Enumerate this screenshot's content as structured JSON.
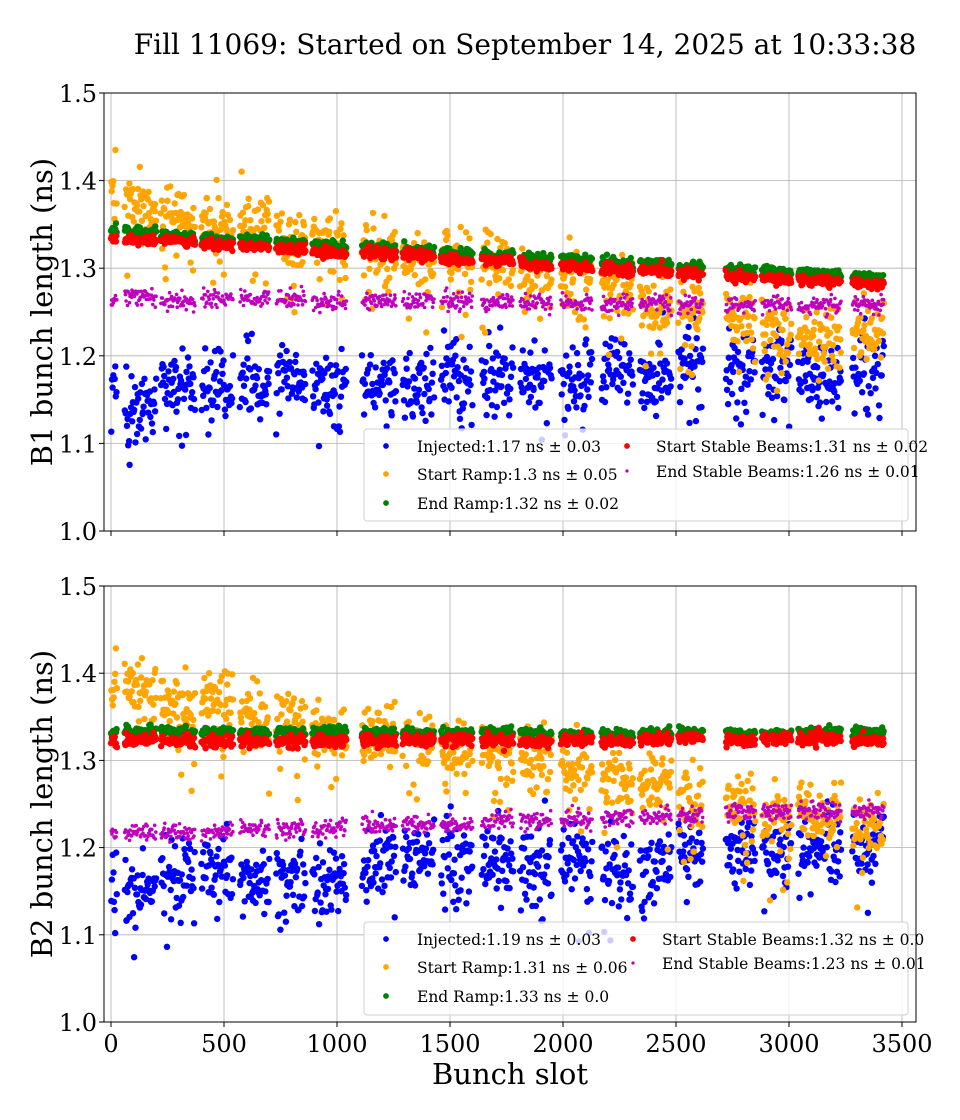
{
  "chart_data": [
    {
      "type": "scatter",
      "panel": "B1",
      "title": "Fill 11069: Started on September 14, 2025 at 10:33:38",
      "xlabel": "Bunch slot",
      "ylabel": "B1 bunch length (ns)",
      "xlim": [
        -31,
        3562
      ],
      "ylim": [
        1.0,
        1.5
      ],
      "xticks": [
        0,
        500,
        1000,
        1500,
        2000,
        2500,
        3000,
        3500
      ],
      "xtick_labels": [
        "0",
        "500",
        "1000",
        "1500",
        "2000",
        "2500",
        "3000",
        "3500"
      ],
      "yticks": [
        1.0,
        1.1,
        1.2,
        1.3,
        1.4,
        1.5
      ],
      "ytick_labels": [
        "1.0",
        "1.1",
        "1.2",
        "1.3",
        "1.4",
        "1.5"
      ],
      "grid": true,
      "legend_placement": "lower-right",
      "trains": [
        [
          0,
          25
        ],
        [
          60,
          200
        ],
        [
          220,
          370
        ],
        [
          400,
          540
        ],
        [
          570,
          700
        ],
        [
          730,
          860
        ],
        [
          890,
          1040
        ],
        [
          1110,
          1260
        ],
        [
          1290,
          1430
        ],
        [
          1460,
          1600
        ],
        [
          1640,
          1780
        ],
        [
          1810,
          1950
        ],
        [
          1990,
          2130
        ],
        [
          2170,
          2310
        ],
        [
          2340,
          2480
        ],
        [
          2510,
          2620
        ],
        [
          2720,
          2850
        ],
        [
          2880,
          3010
        ],
        [
          3040,
          3230
        ],
        [
          3280,
          3420
        ]
      ],
      "series": [
        {
          "name": "Injected",
          "label": "Injected:1.17 ns ± 0.03",
          "color": "#0000ff",
          "size": 3.2,
          "start": 1.155,
          "end": 1.185,
          "spread": 0.03
        },
        {
          "name": "Start Ramp",
          "label": "Start Ramp:1.3 ns ± 0.05",
          "color": "#ffa500",
          "size": 3.2,
          "start": 1.375,
          "end": 1.22,
          "spread": 0.025
        },
        {
          "name": "End Ramp",
          "label": "End Ramp:1.32 ns ± 0.02",
          "color": "#008000",
          "size": 3.2,
          "start": 1.342,
          "end": 1.288,
          "spread": 0.004
        },
        {
          "name": "Start Stable Beams",
          "label": "Start Stable Beams:1.31 ns ± 0.02",
          "color": "#ff0000",
          "size": 3.2,
          "start": 1.335,
          "end": 1.28,
          "spread": 0.004
        },
        {
          "name": "End Stable Beams",
          "label": "End Stable Beams:1.26 ns ± 0.01",
          "color": "#bf00bf",
          "size": 1.8,
          "start": 1.265,
          "end": 1.258,
          "spread": 0.007
        }
      ]
    },
    {
      "type": "scatter",
      "panel": "B2",
      "xlabel": "Bunch slot",
      "ylabel": "B2 bunch length (ns)",
      "xlim": [
        -31,
        3562
      ],
      "ylim": [
        1.0,
        1.5
      ],
      "xticks": [
        0,
        500,
        1000,
        1500,
        2000,
        2500,
        3000,
        3500
      ],
      "xtick_labels": [
        "0",
        "500",
        "1000",
        "1500",
        "2000",
        "2500",
        "3000",
        "3500"
      ],
      "yticks": [
        1.0,
        1.1,
        1.2,
        1.3,
        1.4,
        1.5
      ],
      "ytick_labels": [
        "1.0",
        "1.1",
        "1.2",
        "1.3",
        "1.4",
        "1.5"
      ],
      "grid": true,
      "legend_placement": "lower-right",
      "trains": [
        [
          0,
          25
        ],
        [
          60,
          200
        ],
        [
          220,
          370
        ],
        [
          400,
          540
        ],
        [
          570,
          700
        ],
        [
          730,
          860
        ],
        [
          890,
          1040
        ],
        [
          1110,
          1260
        ],
        [
          1290,
          1430
        ],
        [
          1460,
          1600
        ],
        [
          1640,
          1780
        ],
        [
          1810,
          1950
        ],
        [
          1990,
          2130
        ],
        [
          2170,
          2310
        ],
        [
          2340,
          2480
        ],
        [
          2510,
          2620
        ],
        [
          2720,
          2850
        ],
        [
          2880,
          3010
        ],
        [
          3040,
          3230
        ],
        [
          3280,
          3420
        ]
      ],
      "series": [
        {
          "name": "Injected",
          "label": "Injected:1.19 ns ± 0.03",
          "color": "#0000ff",
          "size": 3.2,
          "start": 1.16,
          "end": 1.2,
          "spread": 0.03
        },
        {
          "name": "Start Ramp",
          "label": "Start Ramp:1.31 ns ± 0.06",
          "color": "#ffa500",
          "size": 3.2,
          "start": 1.385,
          "end": 1.22,
          "spread": 0.025
        },
        {
          "name": "End Ramp",
          "label": "End Ramp:1.33 ns ± 0.0",
          "color": "#008000",
          "size": 3.2,
          "start": 1.332,
          "end": 1.331,
          "spread": 0.004
        },
        {
          "name": "Start Stable Beams",
          "label": "Start Stable Beams:1.32 ns ± 0.0",
          "color": "#ff0000",
          "size": 3.2,
          "start": 1.323,
          "end": 1.323,
          "spread": 0.005
        },
        {
          "name": "End Stable Beams",
          "label": "End Stable Beams:1.23 ns ± 0.01",
          "color": "#bf00bf",
          "size": 1.8,
          "start": 1.215,
          "end": 1.245,
          "spread": 0.007
        }
      ]
    }
  ]
}
